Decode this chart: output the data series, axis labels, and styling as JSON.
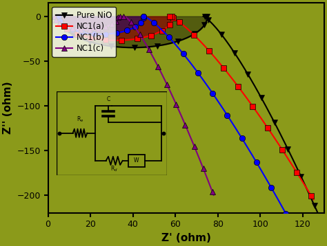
{
  "background_color": "#8B9A1A",
  "title": "",
  "xlabel": "Z' (ohm)",
  "ylabel": "Z'' (ohm)",
  "xlim": [
    0,
    130
  ],
  "ylim": [
    -220,
    15
  ],
  "yticks": [
    0,
    -50,
    -100,
    -150,
    -200
  ],
  "xticks": [
    0,
    20,
    40,
    60,
    80,
    100,
    120
  ],
  "series": {
    "NiO": {
      "color": "black",
      "marker": "v",
      "label": "Pure NiO",
      "markersize": 6
    },
    "NC1a": {
      "color": "red",
      "marker": "s",
      "label": "NC1(a)",
      "markersize": 6
    },
    "NC1b": {
      "color": "blue",
      "marker": "o",
      "label": "NC1(b)",
      "markersize": 6
    },
    "NC1c": {
      "color": "purple",
      "marker": "^",
      "label": "NC1(c)",
      "markersize": 6
    }
  }
}
